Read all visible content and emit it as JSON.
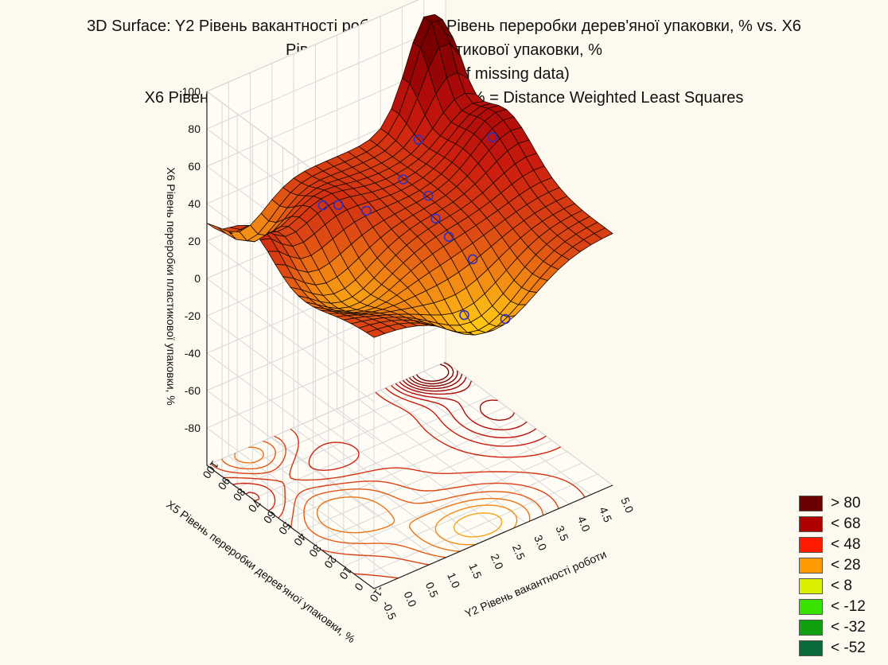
{
  "chart_data": {
    "type": "surface3d",
    "title_lines": [
      "3D Surface: Y2 Рівень вакантності роботи vs. X5 Рівень переробки дерев'яної упаковки, % vs. X6",
      "Рівень переробки пластикової упаковки, %",
      "(Casewise deletion of missing data)",
      "X6 Рівень переробки пластикової упаковки, % = Distance Weighted Least Squares"
    ],
    "xlabel": "Y2 Рівень вакантності роботи",
    "ylabel": "X5 Рівень переробки дерев'яної упаковки, %",
    "zlabel": "X6 Рівень переробки пластикової упаковки, %",
    "x_ticks": [
      "-0.5",
      "0.0",
      "0.5",
      "1.0",
      "1.5",
      "2.0",
      "2.5",
      "3.0",
      "3.5",
      "4.0",
      "4.5",
      "5.0"
    ],
    "y_ticks": [
      "-10",
      "0",
      "10",
      "20",
      "30",
      "40",
      "50",
      "60",
      "70",
      "80",
      "90",
      "100"
    ],
    "z_ticks": [
      "100",
      "80",
      "60",
      "40",
      "20",
      "0",
      "-20",
      "-40",
      "-60",
      "-80"
    ],
    "xlim": [
      -0.5,
      5.0
    ],
    "ylim": [
      -10,
      100
    ],
    "zlim": [
      -100,
      100
    ],
    "observations": [
      {
        "x": 0.6,
        "y": 55,
        "z": 55
      },
      {
        "x": 1.2,
        "y": 62,
        "z": 45
      },
      {
        "x": 1.6,
        "y": 55,
        "z": 42
      },
      {
        "x": 2.2,
        "y": 48,
        "z": 57
      },
      {
        "x": 2.5,
        "y": 40,
        "z": 50
      },
      {
        "x": 2.6,
        "y": 38,
        "z": 38
      },
      {
        "x": 2.8,
        "y": 35,
        "z": 28
      },
      {
        "x": 3.0,
        "y": 25,
        "z": 20
      },
      {
        "x": 2.7,
        "y": 22,
        "z": -5
      },
      {
        "x": 3.4,
        "y": 15,
        "z": -10
      },
      {
        "x": 4.4,
        "y": 52,
        "z": 55
      },
      {
        "x": 2.8,
        "y": 55,
        "z": 68
      }
    ],
    "legend": [
      {
        "label": "> 80",
        "color": "#6b0000"
      },
      {
        "label": "< 68",
        "color": "#b00000"
      },
      {
        "label": "< 48",
        "color": "#ff1a00"
      },
      {
        "label": "< 28",
        "color": "#ff9a00"
      },
      {
        "label": "< 8",
        "color": "#d8f000"
      },
      {
        "label": "< -12",
        "color": "#3ae000"
      },
      {
        "label": "< -32",
        "color": "#10a010"
      },
      {
        "label": "< -52",
        "color": "#0a6a3a"
      }
    ],
    "legend_placement": "bottom-right",
    "grid": true
  }
}
